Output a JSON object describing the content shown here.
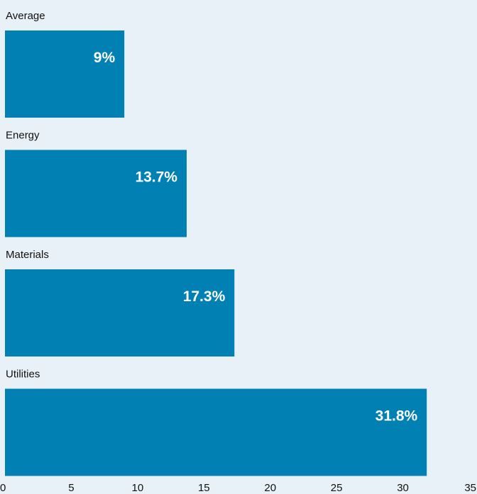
{
  "chart_data": {
    "type": "bar",
    "orientation": "horizontal",
    "categories": [
      "Average",
      "Energy",
      "Materials",
      "Utilities"
    ],
    "values": [
      9,
      13.7,
      17.3,
      31.8
    ],
    "value_labels": [
      "9%",
      "13.7%",
      "17.3%",
      "31.8%"
    ],
    "xlim": [
      0,
      35
    ],
    "x_ticks": [
      "0",
      "5",
      "10",
      "15",
      "20",
      "25",
      "30",
      "35"
    ],
    "title": "",
    "xlabel": "",
    "ylabel": "",
    "grid": false,
    "legend": "none",
    "colors": {
      "bar": "#0080b3",
      "background": "#e9f1f8",
      "value_text": "#ffffff",
      "label_text": "#111111"
    }
  }
}
